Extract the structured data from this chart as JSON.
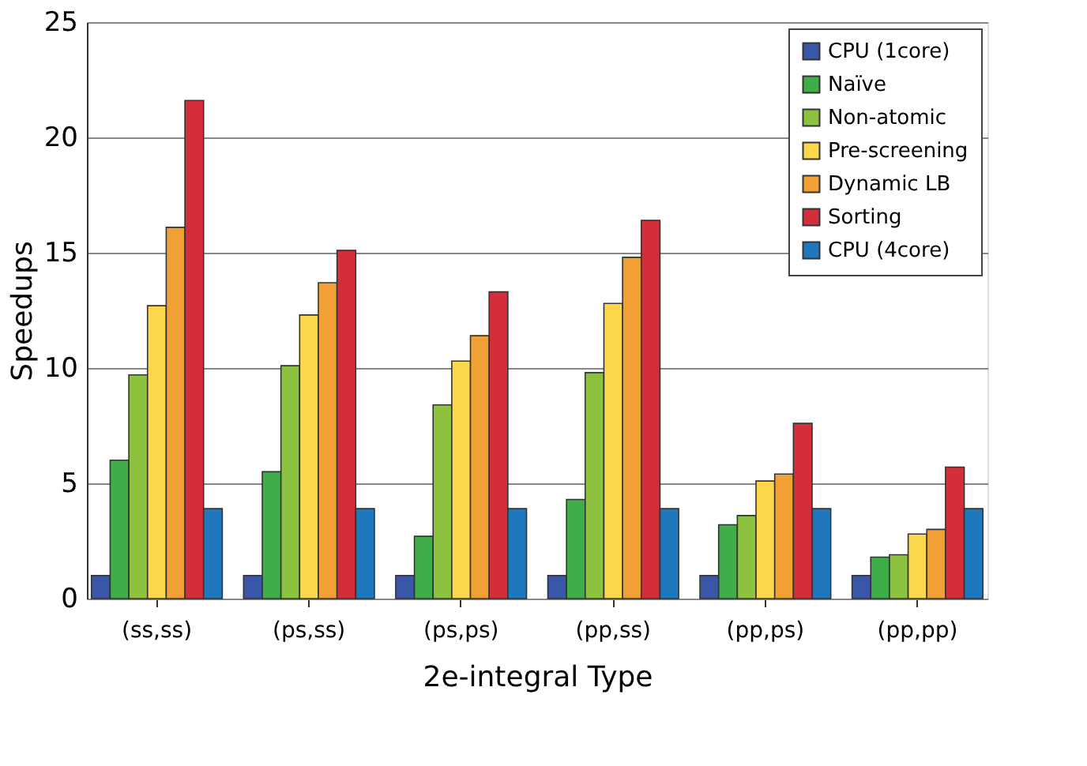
{
  "chart_data": {
    "type": "bar",
    "xlabel": "2e-integral Type",
    "ylabel": "Speedups",
    "categories": [
      "(ss,ss)",
      "(ps,ss)",
      "(ps,ps)",
      "(pp,ss)",
      "(pp,ps)",
      "(pp,pp)"
    ],
    "series": [
      {
        "name": "CPU (1core)",
        "color": "#3a57a7",
        "values": [
          1,
          1,
          1,
          1,
          1,
          1
        ]
      },
      {
        "name": "Naïve",
        "color": "#3fae49",
        "values": [
          6.0,
          5.5,
          2.7,
          4.3,
          3.2,
          1.8
        ]
      },
      {
        "name": "Non-atomic",
        "color": "#8dc240",
        "values": [
          9.7,
          10.1,
          8.4,
          9.8,
          3.6,
          1.9
        ]
      },
      {
        "name": "Pre-screening",
        "color": "#fcd64b",
        "values": [
          12.7,
          12.3,
          10.3,
          12.8,
          5.1,
          2.8
        ]
      },
      {
        "name": "Dynamic LB",
        "color": "#f1a035",
        "values": [
          16.1,
          13.7,
          11.4,
          14.8,
          5.4,
          3.0
        ]
      },
      {
        "name": "Sorting",
        "color": "#d42e3a",
        "values": [
          21.6,
          15.1,
          13.3,
          16.4,
          7.6,
          5.7
        ]
      },
      {
        "name": "CPU (4core)",
        "color": "#1f78be",
        "values": [
          3.9,
          3.9,
          3.9,
          3.9,
          3.9,
          3.9
        ]
      }
    ],
    "ylim": [
      0,
      25
    ],
    "yticks": [
      0,
      5,
      10,
      15,
      20,
      25
    ],
    "grid": "y",
    "legend": "top right"
  }
}
